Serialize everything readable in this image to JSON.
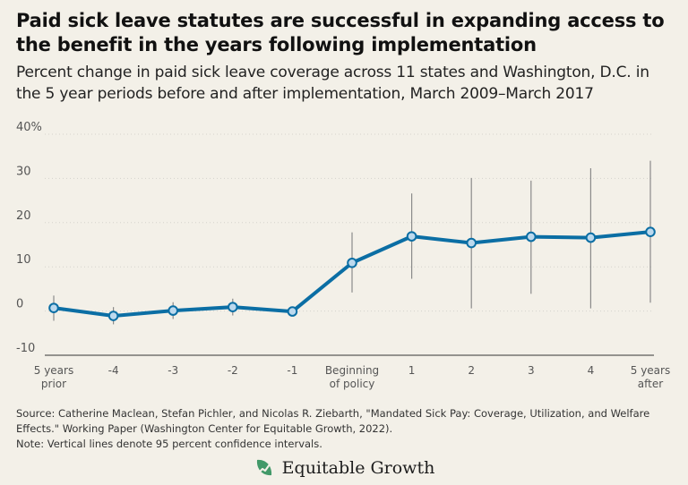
{
  "chart_title": "Paid sick leave statutes are successful in expanding access to the benefit in the years following implementation",
  "chart_subtitle": "Percent change in paid sick leave coverage across 11 states and Washington, D.C. in the 5 year periods before and after implementation, March 2009–March 2017",
  "source_text": "Source: Catherine Maclean, Stefan Pichler, and Nicolas R. Ziebarth, \"Mandated Sick Pay: Coverage, Utilization, and Welfare Effects.\" Working Paper (Washington Center for Equitable Growth, 2022).",
  "note_text": "Note: Vertical lines denote 95 percent confidence intervals.",
  "logo": {
    "text": "Equitable Growth",
    "icon": "line-chart-leaf-icon",
    "color": "#2f8f5b"
  },
  "colors": {
    "series": "#0b6ea4",
    "marker_fill": "#bcd9ee",
    "ci": "#8a8a8a",
    "background": "#f3f0e8"
  },
  "chart_data": {
    "type": "line",
    "title": "Paid sick leave statutes are successful in expanding access to the benefit in the years following implementation",
    "subtitle": "Percent change in paid sick leave coverage across 11 states and Washington, D.C. in the 5 year periods before and after implementation, March 2009–March 2017",
    "categories": [
      "5 years prior",
      "-4",
      "-3",
      "-2",
      "-1",
      "Beginning of policy",
      "1",
      "2",
      "3",
      "4",
      "5 years after"
    ],
    "category_lines": [
      [
        "5 years",
        "prior"
      ],
      [
        "-4"
      ],
      [
        "-3"
      ],
      [
        "-2"
      ],
      [
        "-1"
      ],
      [
        "Beginning",
        "of policy"
      ],
      [
        "1"
      ],
      [
        "2"
      ],
      [
        "3"
      ],
      [
        "4"
      ],
      [
        "5 years",
        "after"
      ]
    ],
    "series": [
      {
        "values": [
          0.7,
          -1.1,
          0.1,
          0.9,
          -0.1,
          10.9,
          16.9,
          15.4,
          16.8,
          16.6,
          17.9
        ],
        "ci_low": [
          -2.2,
          -3.0,
          -1.8,
          -1.0,
          -0.2,
          4.2,
          7.3,
          0.6,
          3.9,
          0.6,
          1.9
        ],
        "ci_high": [
          3.5,
          0.9,
          2.0,
          2.8,
          0.0,
          17.8,
          26.6,
          30.1,
          29.5,
          32.3,
          34.0
        ]
      }
    ],
    "yticks": [
      -10,
      0,
      10,
      20,
      30,
      40
    ],
    "ytick_labels": [
      "-10",
      "0",
      "10",
      "20",
      "30",
      "40%"
    ],
    "ylim": [
      -10,
      40
    ],
    "grid": true
  }
}
